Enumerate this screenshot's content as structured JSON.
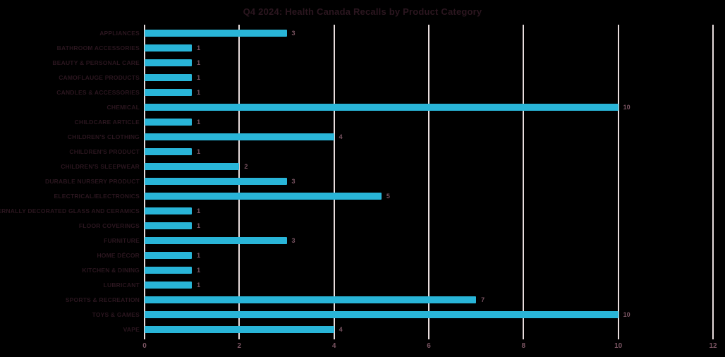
{
  "page": {
    "background": "#000000"
  },
  "chart_data": {
    "type": "bar",
    "orientation": "horizontal",
    "title": "Q4 2024: Health Canada Recalls by Product Category",
    "categories": [
      "APPLIANCES",
      "BATHROOM ACCESSORIES",
      "BEAUTY & PERSONAL CARE",
      "CAMOFLAUGE PRODUCTS",
      "CANDLES & ACCESSORIES",
      "CHEMICAL",
      "CHILDCARE ARTICLE",
      "CHILDREN'S CLOTHING",
      "CHILDREN'S PRODUCT",
      "CHILDREN'S SLEEPWEAR",
      "DURABLE NURSERY PRODUCT",
      "ELECTRICAL/ELECTRONICS",
      "EXTERNALLY DECORATED GLASS AND CERAMICS",
      "FLOOR COVERINGS",
      "FURNITURE",
      "HOME DÉCOR",
      "KITCHEN & DINING",
      "LUBRICANT",
      "SPORTS & RECREATION",
      "TOYS & GAMES",
      "VAPE"
    ],
    "values": [
      3,
      1,
      1,
      1,
      1,
      10,
      1,
      4,
      1,
      2,
      3,
      5,
      1,
      1,
      3,
      1,
      1,
      1,
      7,
      10,
      4
    ],
    "data_labels_shown": true,
    "xlabel": "",
    "ylabel": "",
    "xlim": [
      0,
      12
    ],
    "xticks": [
      0,
      2,
      4,
      6,
      8,
      10,
      12
    ],
    "grid": "vertical",
    "legend": "none",
    "colors": {
      "bar": "#29B5D8",
      "gridline": "#E8DDDD",
      "title": "#2B161F",
      "category_label": "#2B161F",
      "value_label": "#7A5462",
      "tick_label": "#7A5462",
      "background": "#000000"
    }
  }
}
